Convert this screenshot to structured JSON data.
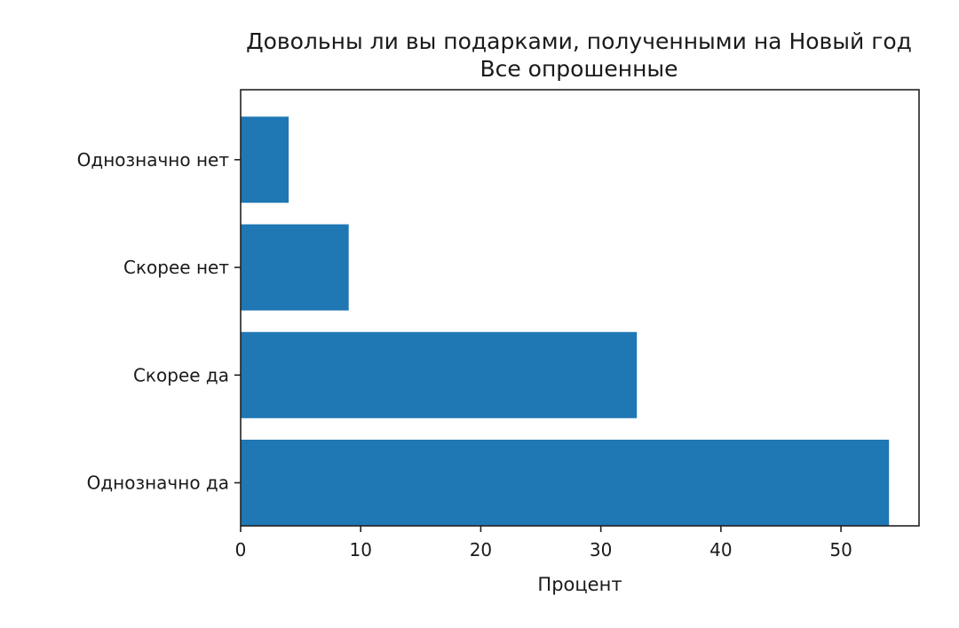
{
  "chart_data": {
    "type": "bar",
    "orientation": "horizontal",
    "title": "Довольны ли вы подарками, полученными на Новый год",
    "subtitle": "Все опрошенные",
    "xlabel": "Процент",
    "ylabel": "",
    "categories": [
      "Однозначно нет",
      "Скорее нет",
      "Скорее да",
      "Однозначно да"
    ],
    "values": [
      4,
      9,
      33,
      54
    ],
    "xlim": [
      0,
      56.5
    ],
    "xticks": [
      0,
      10,
      20,
      30,
      40,
      50
    ],
    "xtick_labels": [
      "0",
      "10",
      "20",
      "30",
      "40",
      "50"
    ],
    "bar_color": "#1f77b4",
    "grid": false,
    "legend": false
  }
}
